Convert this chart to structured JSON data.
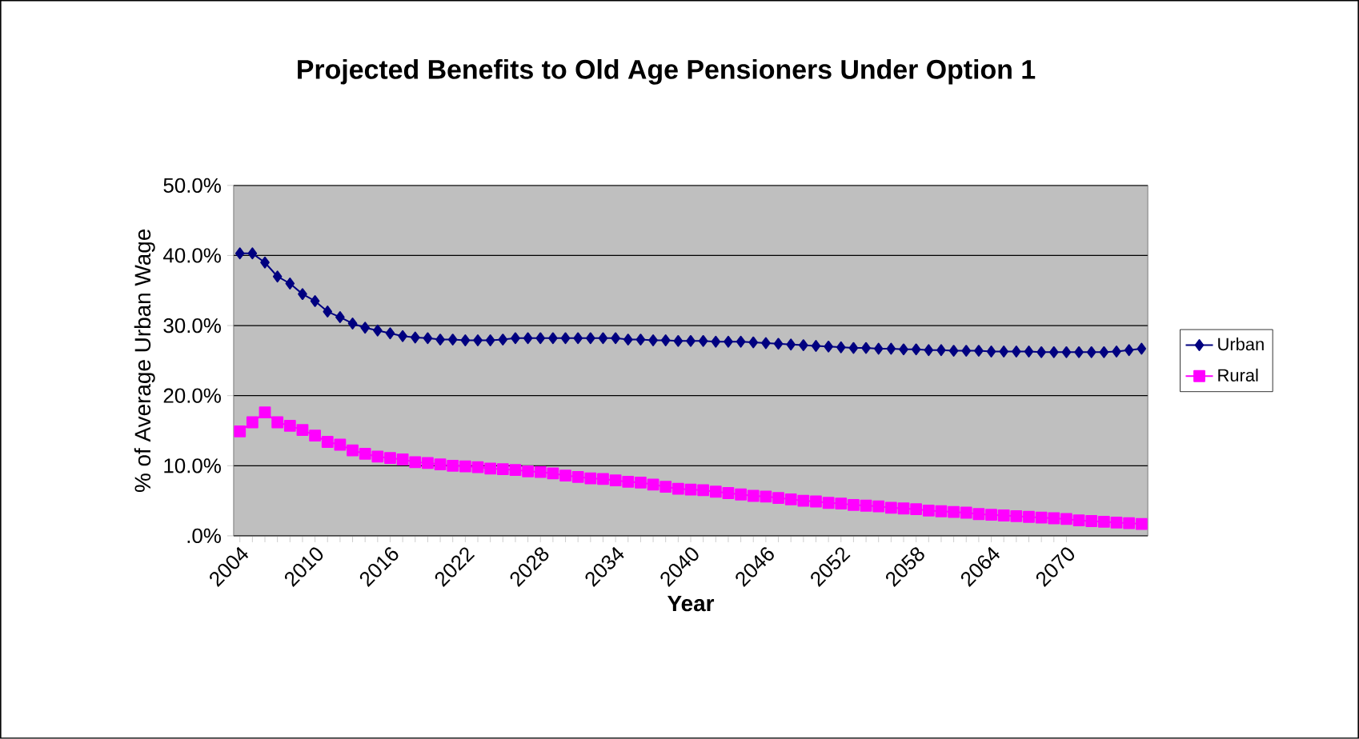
{
  "chart_data": {
    "type": "line",
    "title": "Projected Benefits to Old Age Pensioners Under Option 1",
    "xlabel": "Year",
    "ylabel": "% of Average Urban Wage",
    "x": [
      2004,
      2005,
      2006,
      2007,
      2008,
      2009,
      2010,
      2011,
      2012,
      2013,
      2014,
      2015,
      2016,
      2017,
      2018,
      2019,
      2020,
      2021,
      2022,
      2023,
      2024,
      2025,
      2026,
      2027,
      2028,
      2029,
      2030,
      2031,
      2032,
      2033,
      2034,
      2035,
      2036,
      2037,
      2038,
      2039,
      2040,
      2041,
      2042,
      2043,
      2044,
      2045,
      2046,
      2047,
      2048,
      2049,
      2050,
      2051,
      2052,
      2053,
      2054,
      2055,
      2056,
      2057,
      2058,
      2059,
      2060,
      2061,
      2062,
      2063,
      2064,
      2065,
      2066,
      2067,
      2068,
      2069,
      2070,
      2071,
      2072,
      2073,
      2074,
      2075,
      2076
    ],
    "series": [
      {
        "name": "Urban",
        "color": "#000080",
        "marker": "diamond",
        "values": [
          40.3,
          40.3,
          39.0,
          37.0,
          36.0,
          34.5,
          33.5,
          32.0,
          31.2,
          30.3,
          29.7,
          29.3,
          28.9,
          28.5,
          28.3,
          28.2,
          28.0,
          28.0,
          27.9,
          27.9,
          27.9,
          28.0,
          28.2,
          28.2,
          28.2,
          28.2,
          28.2,
          28.2,
          28.2,
          28.2,
          28.2,
          28.0,
          28.0,
          27.9,
          27.9,
          27.8,
          27.8,
          27.8,
          27.7,
          27.7,
          27.7,
          27.6,
          27.5,
          27.4,
          27.3,
          27.2,
          27.1,
          27.0,
          26.9,
          26.8,
          26.8,
          26.7,
          26.7,
          26.6,
          26.6,
          26.5,
          26.5,
          26.4,
          26.4,
          26.4,
          26.3,
          26.3,
          26.3,
          26.3,
          26.2,
          26.2,
          26.2,
          26.2,
          26.2,
          26.2,
          26.3,
          26.5,
          26.7
        ]
      },
      {
        "name": "Rural",
        "color": "#ff00ff",
        "marker": "square",
        "values": [
          14.9,
          16.2,
          17.6,
          16.2,
          15.7,
          15.1,
          14.3,
          13.4,
          13.0,
          12.2,
          11.7,
          11.3,
          11.1,
          10.9,
          10.5,
          10.4,
          10.2,
          10.0,
          9.9,
          9.8,
          9.6,
          9.5,
          9.4,
          9.2,
          9.1,
          8.9,
          8.6,
          8.4,
          8.2,
          8.1,
          7.9,
          7.7,
          7.6,
          7.3,
          7.0,
          6.7,
          6.6,
          6.5,
          6.3,
          6.1,
          5.9,
          5.7,
          5.6,
          5.4,
          5.2,
          5.0,
          4.9,
          4.7,
          4.6,
          4.4,
          4.3,
          4.2,
          4.0,
          3.9,
          3.8,
          3.6,
          3.5,
          3.4,
          3.3,
          3.1,
          3.0,
          2.9,
          2.8,
          2.7,
          2.6,
          2.5,
          2.4,
          2.2,
          2.1,
          2.0,
          1.9,
          1.8,
          1.7
        ]
      }
    ],
    "xlim": [
      2003.5,
      2076.5
    ],
    "xticks": [
      2004,
      2010,
      2016,
      2022,
      2028,
      2034,
      2040,
      2046,
      2052,
      2058,
      2064,
      2070
    ],
    "ylim": [
      0,
      50
    ],
    "yticks": [
      {
        "value": 0,
        "label": ".0%"
      },
      {
        "value": 10,
        "label": "10.0%"
      },
      {
        "value": 20,
        "label": "20.0%"
      },
      {
        "value": 30,
        "label": "30.0%"
      },
      {
        "value": 40,
        "label": "40.0%"
      },
      {
        "value": 50,
        "label": "50.0%"
      }
    ],
    "grid": "y",
    "legend": "right",
    "line_style": "solid"
  }
}
